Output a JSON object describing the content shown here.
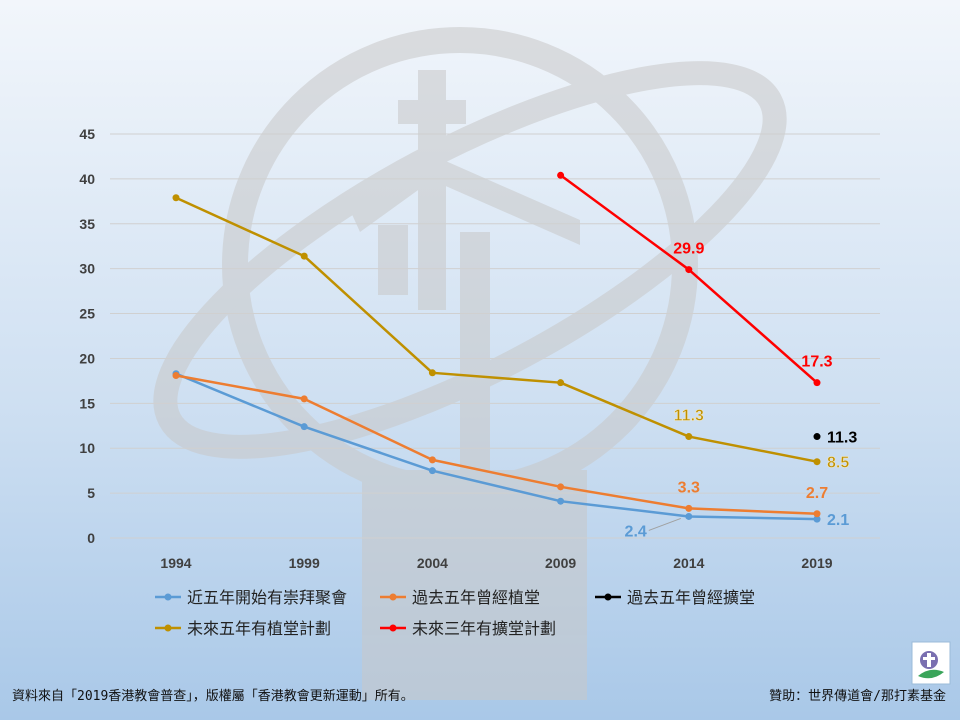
{
  "footer": {
    "source": "資料來自「2019香港教會普查」，版權屬「香港教會更新運動」所有。",
    "sponsor": "贊助：世界傳道會/那打素基金"
  },
  "chart_data": {
    "type": "line",
    "title": "",
    "xlabel": "",
    "ylabel": "",
    "categories": [
      "1994",
      "1999",
      "2004",
      "2009",
      "2014",
      "2019"
    ],
    "ylim": [
      0,
      45
    ],
    "yticks": [
      "0",
      "5",
      "10",
      "15",
      "20",
      "25",
      "30",
      "35",
      "40",
      "45"
    ],
    "grid": true,
    "legend_position": "bottom",
    "series": [
      {
        "name": "近五年開始有崇拜聚會",
        "color": "#5b9bd5",
        "values": [
          18.3,
          12.4,
          7.5,
          4.1,
          2.4,
          2.1
        ],
        "labels": [
          null,
          null,
          null,
          null,
          "2.4",
          "2.1"
        ]
      },
      {
        "name": "過去五年曾經植堂",
        "color": "#ed7d31",
        "values": [
          18.1,
          15.5,
          8.7,
          5.7,
          3.3,
          2.7
        ],
        "labels": [
          null,
          null,
          null,
          null,
          "3.3",
          "2.7"
        ]
      },
      {
        "name": "過去五年曾經擴堂",
        "color": "#000000",
        "values": [
          null,
          null,
          null,
          null,
          null,
          11.3
        ],
        "labels": [
          null,
          null,
          null,
          null,
          null,
          "11.3"
        ]
      },
      {
        "name": "未來五年有植堂計劃",
        "color": "#bf9000",
        "values": [
          37.9,
          31.4,
          18.4,
          17.3,
          11.3,
          8.5
        ],
        "labels": [
          null,
          null,
          null,
          null,
          "11.3",
          "8.5"
        ]
      },
      {
        "name": "未來三年有擴堂計劃",
        "color": "#ff0000",
        "values": [
          null,
          null,
          null,
          40.4,
          29.9,
          17.3
        ],
        "labels": [
          null,
          null,
          null,
          null,
          "29.9",
          "17.3"
        ]
      }
    ]
  }
}
